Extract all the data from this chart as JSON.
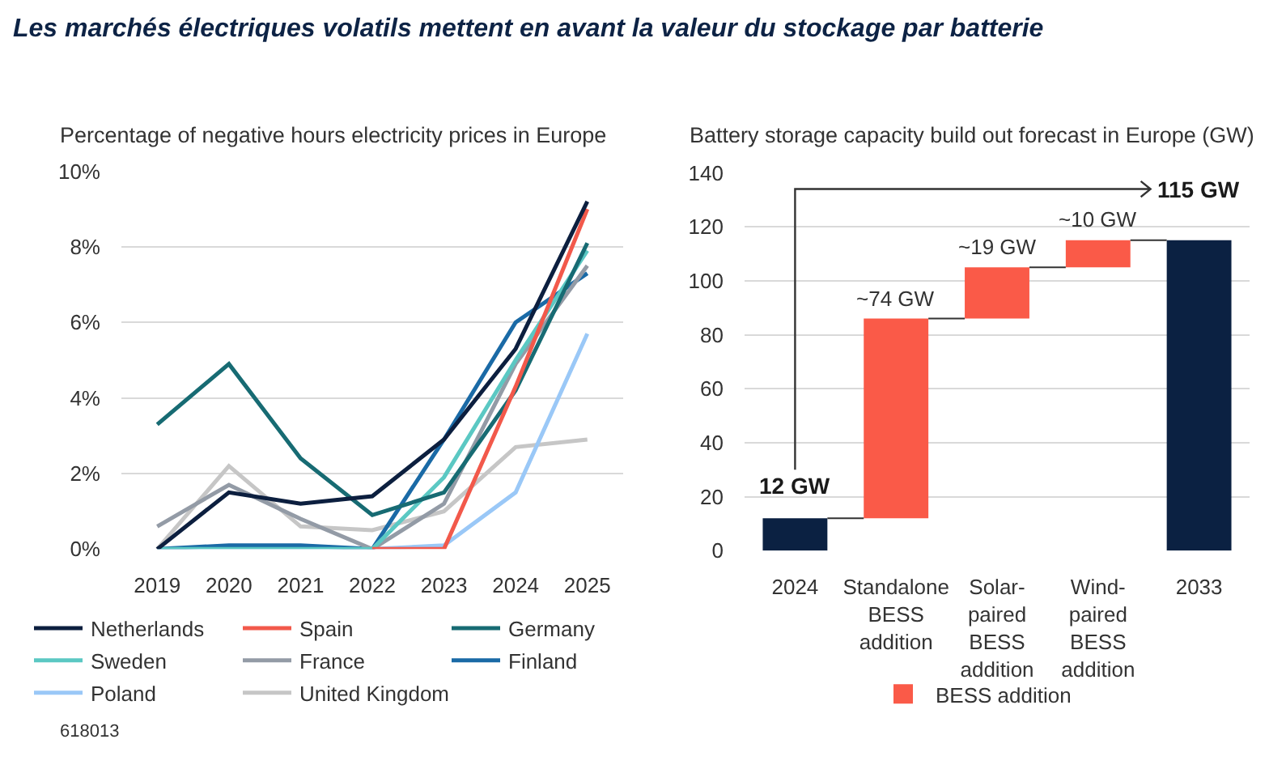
{
  "chart_data": [
    {
      "type": "other",
      "title": "Les marchés électriques volatils mettent en avant la valeur du stockage par batterie",
      "annotations": [
        "618013"
      ]
    },
    {
      "type": "line",
      "title": "Percentage of negative hours electricity prices in Europe",
      "categories": [
        "2019",
        "2020",
        "2021",
        "2022",
        "2023",
        "2024",
        "2025"
      ],
      "ylim": [
        0,
        10
      ],
      "yticks": [
        {
          "value": 0,
          "label": "0%"
        },
        {
          "value": 2,
          "label": "2%"
        },
        {
          "value": 4,
          "label": "4%"
        },
        {
          "value": 6,
          "label": "6%"
        },
        {
          "value": 8,
          "label": "8%"
        },
        {
          "value": 10,
          "label": "10%"
        }
      ],
      "grid": "y",
      "legend": "bottom",
      "series": [
        {
          "name": "Netherlands",
          "color": "#0c1f3f",
          "values": [
            0,
            1.5,
            1.2,
            1.4,
            2.9,
            5.3,
            9.2
          ]
        },
        {
          "name": "Spain",
          "color": "#f2594b",
          "values": [
            null,
            null,
            null,
            0,
            0,
            4.3,
            9.0
          ]
        },
        {
          "name": "Germany",
          "color": "#176b73",
          "values": [
            3.3,
            4.9,
            2.4,
            0.9,
            1.5,
            4.2,
            8.1
          ]
        },
        {
          "name": "Sweden",
          "color": "#5bc8c3",
          "values": [
            0,
            0,
            0,
            0,
            1.9,
            5.0,
            7.9
          ]
        },
        {
          "name": "France",
          "color": "#939ba6",
          "values": [
            0.6,
            1.7,
            0.8,
            0,
            1.2,
            4.9,
            7.5
          ]
        },
        {
          "name": "Finland",
          "color": "#1a6aa6",
          "values": [
            0,
            0.1,
            0.1,
            0,
            2.9,
            6.0,
            7.3
          ]
        },
        {
          "name": "Poland",
          "color": "#9ac8f7",
          "values": [
            0,
            0,
            0,
            0,
            0.1,
            1.5,
            5.7
          ]
        },
        {
          "name": "United Kingdom",
          "color": "#c6c6c6",
          "values": [
            0,
            2.2,
            0.6,
            0.5,
            1.0,
            2.7,
            2.9
          ]
        }
      ]
    },
    {
      "type": "bar",
      "title": "Battery storage capacity build out forecast in Europe (GW)",
      "categories": [
        "2024",
        "Standalone BESS addition",
        "Solar-paired BESS addition",
        "Wind-paired BESS addition",
        "2033"
      ],
      "ylim": [
        0,
        140
      ],
      "yticks": [
        0,
        20,
        40,
        60,
        80,
        100,
        120,
        140
      ],
      "grid": "y",
      "legend": "bottom",
      "series": [
        {
          "color": "#0b2142",
          "values": [
            12,
            null,
            null,
            null,
            115
          ],
          "value_labels": [
            "12 GW",
            null,
            null,
            null,
            "115 GW"
          ]
        },
        {
          "name": "BESS addition",
          "color": "#fa5a48",
          "values": [
            null,
            74,
            19,
            10,
            null
          ],
          "base": [
            null,
            12,
            86,
            105,
            null
          ],
          "value_labels": [
            null,
            "~74 GW",
            "~19 GW",
            "~10 GW",
            null
          ]
        }
      ]
    }
  ]
}
